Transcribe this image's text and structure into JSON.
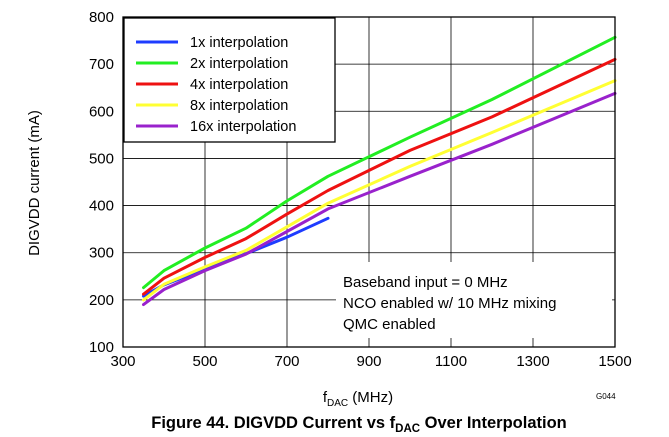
{
  "chart_data": {
    "type": "line",
    "xlim": [
      300,
      1500
    ],
    "ylim": [
      100,
      800
    ],
    "x_ticks": [
      300,
      500,
      700,
      900,
      1100,
      1300,
      1500
    ],
    "y_ticks": [
      100,
      200,
      300,
      400,
      500,
      600,
      700,
      800
    ],
    "grid": true,
    "ylabel": "DIGVDD current (mA)",
    "xlabel": {
      "main": "f",
      "sub": "DAC",
      "unit": " (MHz)"
    },
    "legend_position": "top-left",
    "series": [
      {
        "name": "1x interpolation",
        "color": "#1e3cff",
        "points": [
          [
            350,
            208
          ],
          [
            400,
            232
          ],
          [
            500,
            265
          ],
          [
            600,
            298
          ],
          [
            700,
            333
          ],
          [
            800,
            373
          ]
        ]
      },
      {
        "name": "2x interpolation",
        "color": "#22ee22",
        "points": [
          [
            350,
            226
          ],
          [
            400,
            262
          ],
          [
            500,
            310
          ],
          [
            600,
            352
          ],
          [
            700,
            410
          ],
          [
            800,
            462
          ],
          [
            1000,
            545
          ],
          [
            1200,
            625
          ],
          [
            1500,
            757
          ]
        ]
      },
      {
        "name": "4x interpolation",
        "color": "#ee1111",
        "points": [
          [
            350,
            212
          ],
          [
            400,
            246
          ],
          [
            500,
            290
          ],
          [
            600,
            330
          ],
          [
            700,
            382
          ],
          [
            800,
            432
          ],
          [
            1000,
            517
          ],
          [
            1200,
            588
          ],
          [
            1500,
            710
          ]
        ]
      },
      {
        "name": "8x interpolation",
        "color": "#ffff33",
        "points": [
          [
            350,
            200
          ],
          [
            400,
            233
          ],
          [
            500,
            270
          ],
          [
            600,
            305
          ],
          [
            700,
            355
          ],
          [
            800,
            405
          ],
          [
            1000,
            483
          ],
          [
            1200,
            555
          ],
          [
            1500,
            665
          ]
        ]
      },
      {
        "name": "16x interpolation",
        "color": "#9922cc",
        "points": [
          [
            350,
            190
          ],
          [
            400,
            222
          ],
          [
            500,
            262
          ],
          [
            600,
            297
          ],
          [
            700,
            345
          ],
          [
            800,
            393
          ],
          [
            1000,
            462
          ],
          [
            1200,
            530
          ],
          [
            1500,
            638
          ]
        ]
      }
    ],
    "annotations": [
      "Baseband input = 0 MHz",
      "NCO enabled w/ 10 MHz mixing",
      "QMC enabled"
    ],
    "figure_id": "G044",
    "caption": {
      "before": "Figure 44. DIGVDD Current vs f",
      "sub": "DAC",
      "after": " Over Interpolation"
    }
  }
}
